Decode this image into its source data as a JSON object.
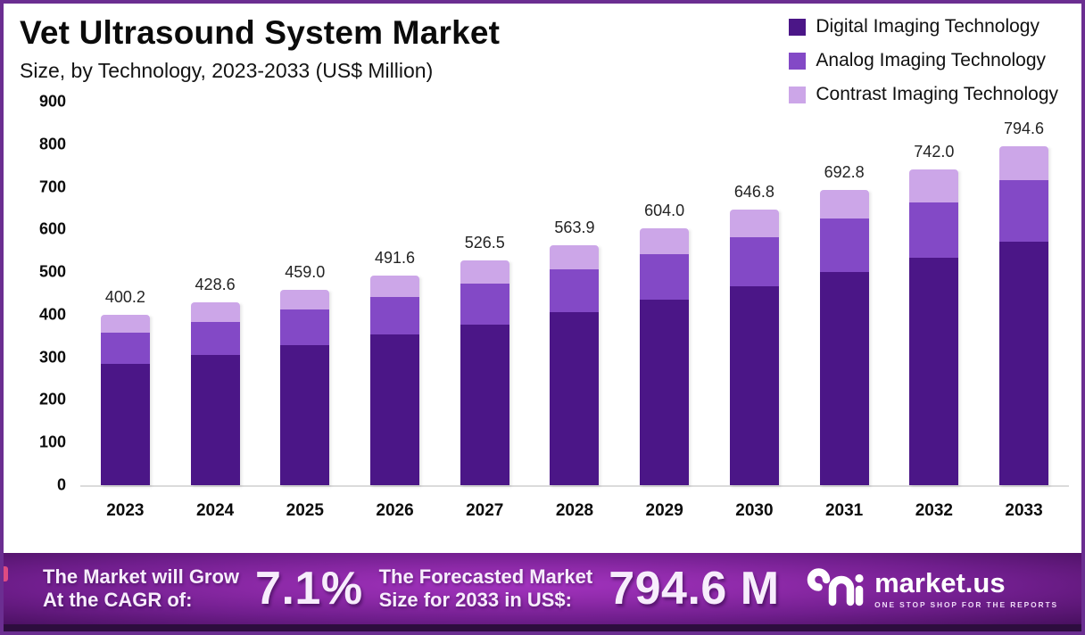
{
  "page": {
    "border_color": "#6B2E91",
    "background": "#ffffff",
    "accent_pink": "#DD4B82"
  },
  "header": {
    "title": "Vet Ultrasound System Market",
    "subtitle": "Size, by Technology, 2023-2033 (US$ Million)"
  },
  "chart_data": {
    "type": "bar",
    "stacked": true,
    "title": "Vet Ultrasound System Market Size, by Technology, 2023-2033 (US$ Million)",
    "categories": [
      "2023",
      "2024",
      "2025",
      "2026",
      "2027",
      "2028",
      "2029",
      "2030",
      "2031",
      "2032",
      "2033"
    ],
    "series": [
      {
        "name": "Digital Imaging Technology",
        "color": "#4B1687",
        "values": [
          285.0,
          306.0,
          329.0,
          353.0,
          377.5,
          406.0,
          435.0,
          467.5,
          500.0,
          533.0,
          572.0
        ]
      },
      {
        "name": "Analog Imaging Technology",
        "color": "#8349C6",
        "values": [
          72.0,
          77.0,
          82.5,
          89.0,
          96.0,
          101.4,
          108.0,
          115.0,
          125.0,
          130.0,
          143.6
        ]
      },
      {
        "name": "Contrast Imaging Technology",
        "color": "#CCA6E8",
        "values": [
          43.2,
          45.6,
          47.5,
          49.6,
          53.0,
          56.5,
          61.0,
          64.3,
          67.8,
          79.0,
          79.0
        ]
      }
    ],
    "totals": [
      400.2,
      428.6,
      459.0,
      491.6,
      526.5,
      563.9,
      604.0,
      646.8,
      692.8,
      742.0,
      794.6
    ],
    "total_labels": [
      "400.2",
      "428.6",
      "459.0",
      "491.6",
      "526.5",
      "563.9",
      "604.0",
      "646.8",
      "692.8",
      "742.0",
      "794.6"
    ],
    "xlabel": "",
    "ylabel": "",
    "ylim": [
      0,
      900
    ],
    "yticks": [
      0,
      100,
      200,
      300,
      400,
      500,
      600,
      700,
      800,
      900
    ],
    "grid": false,
    "legend_position": "top-right",
    "baseline_color": "#DBDBDB"
  },
  "banner": {
    "cagr_label_line1": "The Market will Grow",
    "cagr_label_line2": "At the CAGR of:",
    "cagr_value": "7.1%",
    "forecast_label_line1": "The Forecasted Market",
    "forecast_label_line2": "Size for 2033 in US$:",
    "forecast_value": "794.6 M",
    "logo_text": "market.us",
    "logo_tagline": "ONE STOP SHOP FOR THE REPORTS"
  }
}
